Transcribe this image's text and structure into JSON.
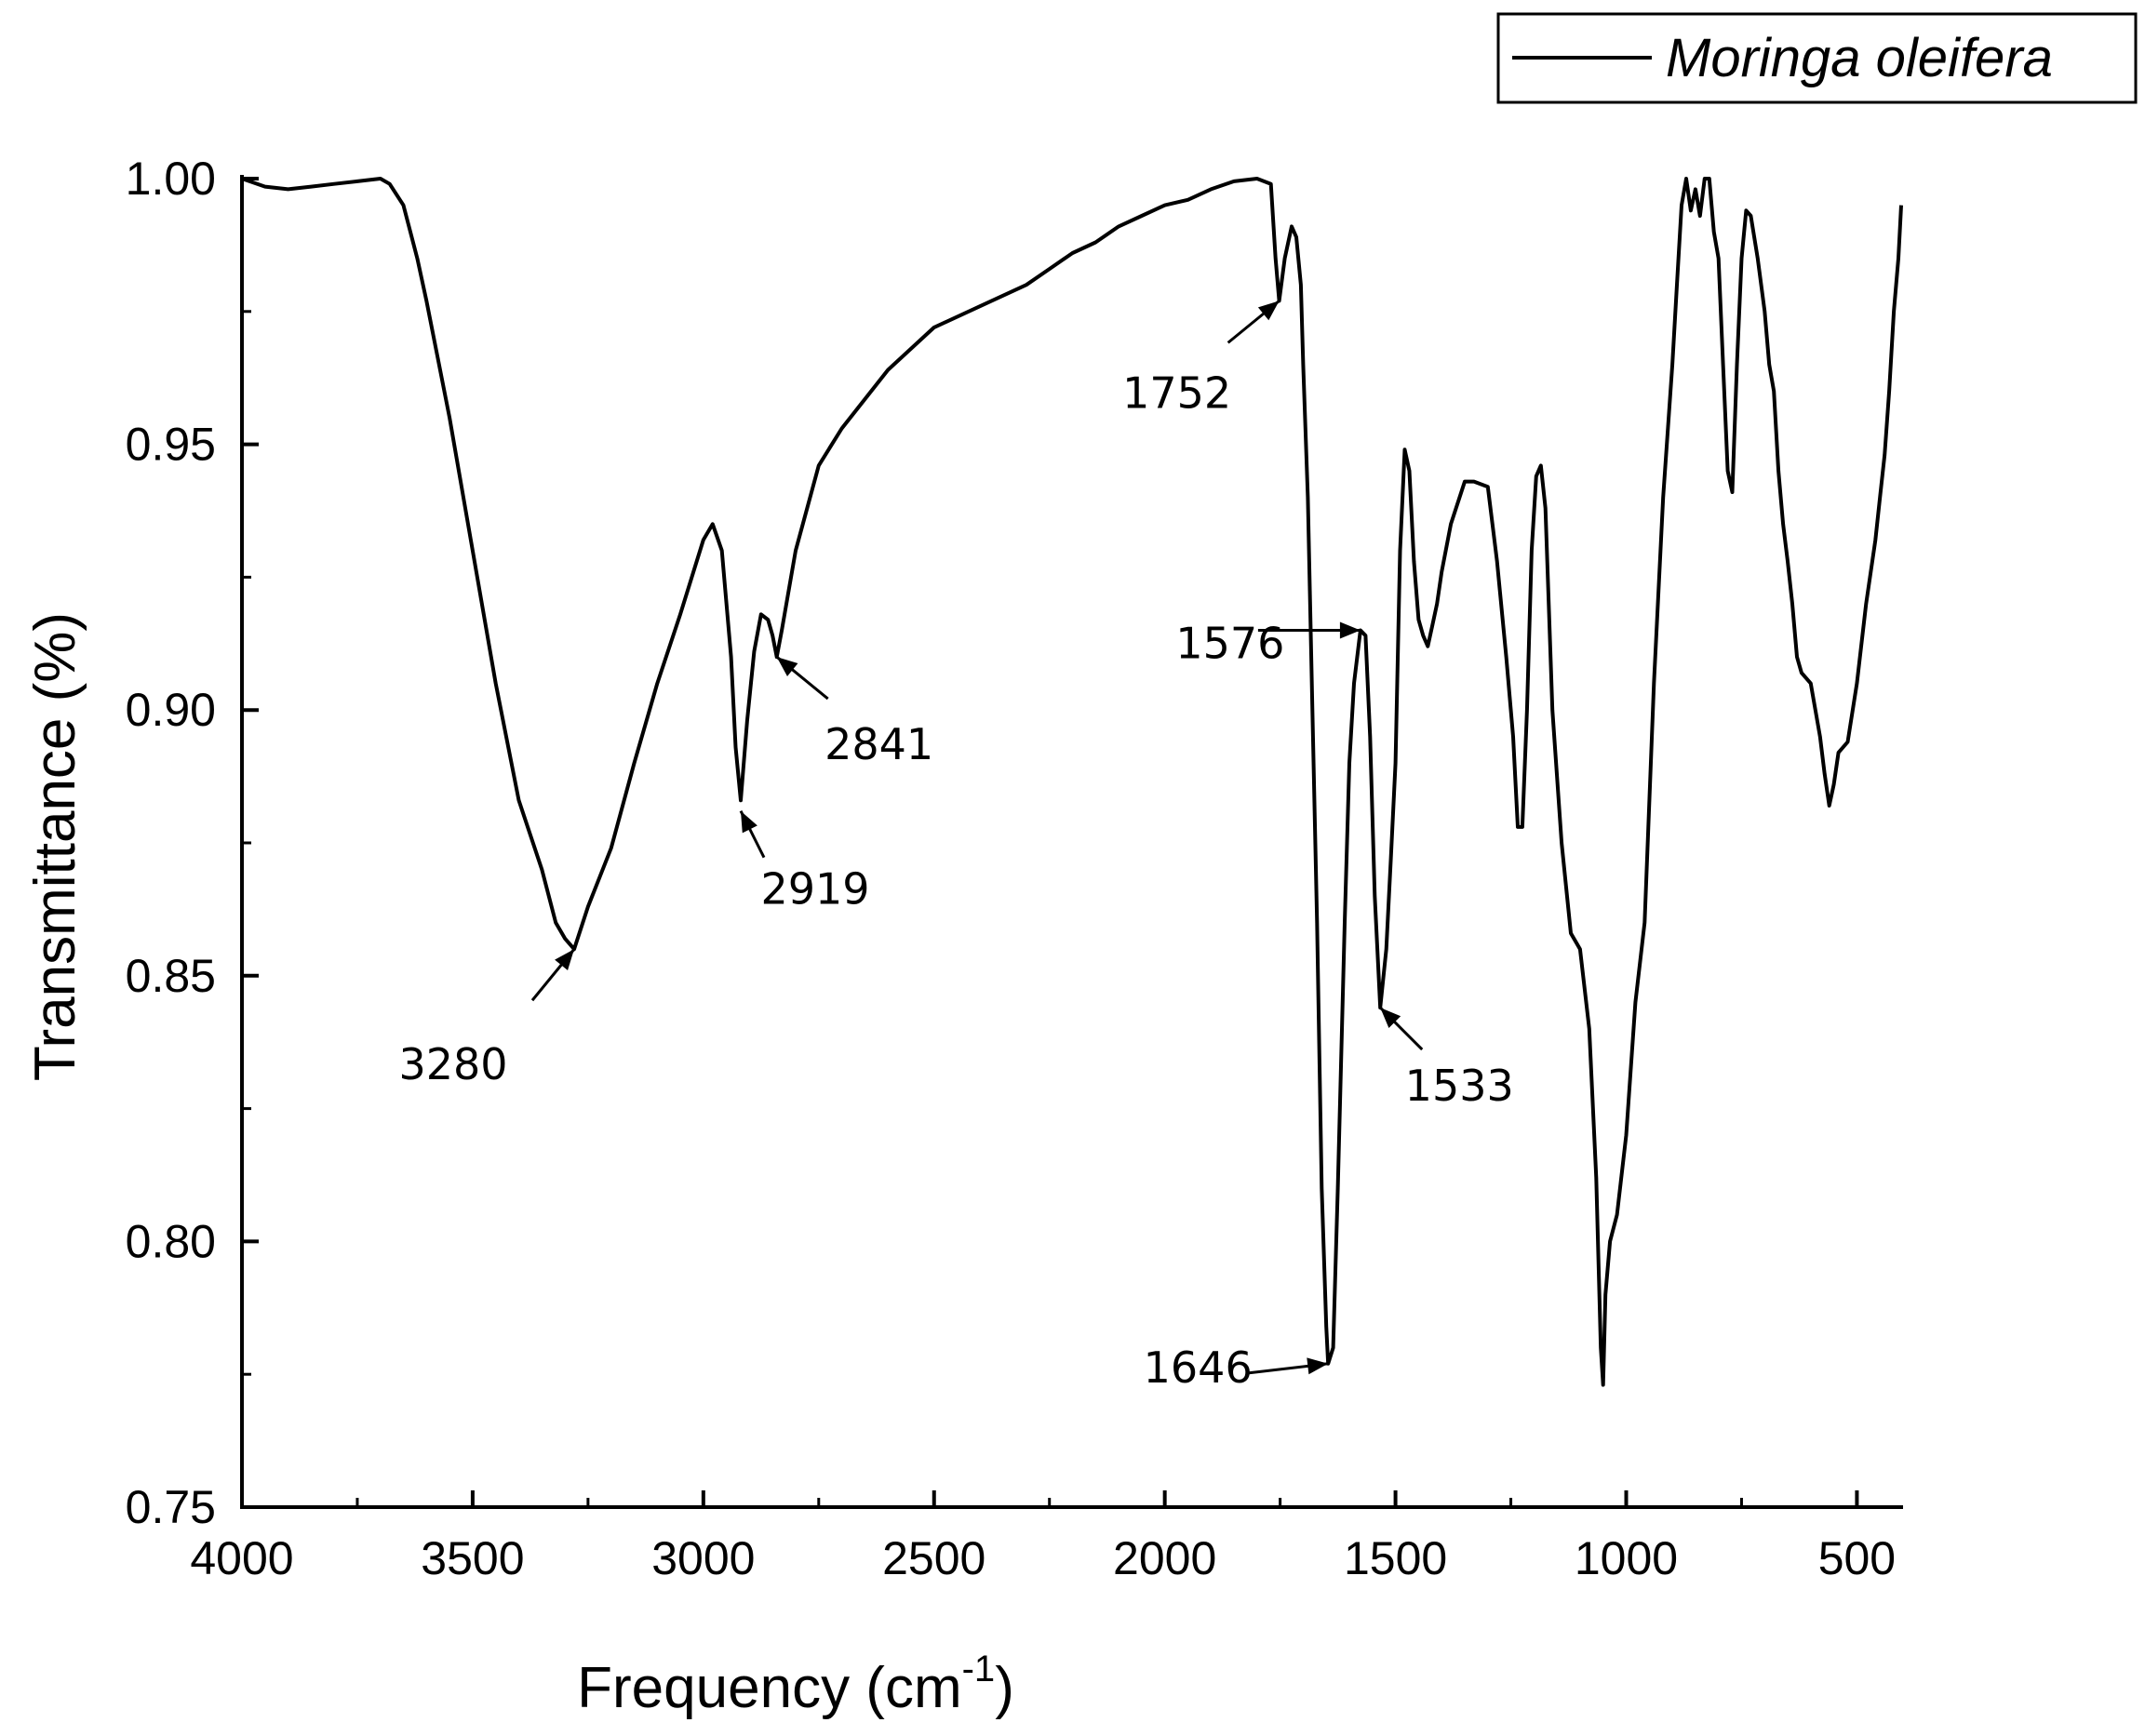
{
  "chart_data": {
    "type": "line",
    "title": "",
    "xlabel": "Frequency (cm",
    "xlabel_sup": "-1",
    "xlabel_close": ")",
    "ylabel": "Transmittance (%)",
    "xlim": [
      4000,
      400
    ],
    "ylim": [
      0.75,
      1.0
    ],
    "x_ticks": [
      4000,
      3500,
      3000,
      2500,
      2000,
      1500,
      1000,
      500
    ],
    "x_tick_labels": [
      "4000",
      "3500",
      "3000",
      "2500",
      "2000",
      "1500",
      "1000",
      "500"
    ],
    "y_ticks": [
      0.75,
      0.8,
      0.85,
      0.9,
      0.95,
      1.0
    ],
    "y_tick_labels": [
      "0.75",
      "0.80",
      "0.85",
      "0.90",
      "0.95",
      "1.00"
    ],
    "legend": {
      "position": "top-right",
      "entries": [
        "Moringa oleifera"
      ]
    },
    "series": [
      {
        "name": "Moringa oleifera",
        "x": [
          4000,
          3950,
          3900,
          3850,
          3800,
          3750,
          3700,
          3680,
          3650,
          3620,
          3600,
          3550,
          3500,
          3450,
          3400,
          3350,
          3320,
          3300,
          3280,
          3250,
          3200,
          3150,
          3100,
          3050,
          3000,
          2980,
          2960,
          2940,
          2930,
          2919,
          2905,
          2890,
          2875,
          2860,
          2850,
          2841,
          2830,
          2800,
          2750,
          2700,
          2600,
          2500,
          2400,
          2300,
          2250,
          2200,
          2150,
          2100,
          2050,
          2000,
          1950,
          1900,
          1850,
          1800,
          1770,
          1760,
          1752,
          1740,
          1725,
          1715,
          1705,
          1700,
          1690,
          1680,
          1670,
          1660,
          1650,
          1646,
          1635,
          1625,
          1610,
          1600,
          1590,
          1576,
          1565,
          1555,
          1545,
          1533,
          1520,
          1510,
          1500,
          1490,
          1480,
          1470,
          1460,
          1450,
          1440,
          1430,
          1420,
          1410,
          1400,
          1380,
          1350,
          1330,
          1300,
          1280,
          1260,
          1245,
          1235,
          1225,
          1215,
          1205,
          1195,
          1185,
          1175,
          1160,
          1140,
          1120,
          1100,
          1080,
          1065,
          1055,
          1050,
          1045,
          1035,
          1020,
          1000,
          980,
          960,
          940,
          920,
          900,
          890,
          880,
          870,
          860,
          850,
          840,
          830,
          820,
          810,
          800,
          790,
          780,
          770,
          760,
          750,
          740,
          730,
          715,
          700,
          690,
          680,
          670,
          660,
          650,
          640,
          630,
          620,
          600,
          590,
          580,
          570,
          560,
          550,
          540,
          520,
          500,
          480,
          460,
          450,
          440,
          430,
          420,
          410,
          404
        ],
        "y": [
          1.0,
          0.9985,
          0.998,
          0.9985,
          0.999,
          0.9995,
          1.0,
          0.999,
          0.995,
          0.985,
          0.977,
          0.955,
          0.93,
          0.905,
          0.883,
          0.87,
          0.86,
          0.857,
          0.855,
          0.863,
          0.874,
          0.89,
          0.905,
          0.918,
          0.932,
          0.935,
          0.93,
          0.91,
          0.893,
          0.883,
          0.898,
          0.911,
          0.918,
          0.917,
          0.914,
          0.91,
          0.915,
          0.93,
          0.946,
          0.953,
          0.964,
          0.972,
          0.976,
          0.98,
          0.983,
          0.986,
          0.988,
          0.991,
          0.993,
          0.995,
          0.996,
          0.998,
          0.9995,
          1.0,
          0.999,
          0.985,
          0.977,
          0.985,
          0.991,
          0.989,
          0.98,
          0.965,
          0.94,
          0.9,
          0.86,
          0.81,
          0.784,
          0.777,
          0.78,
          0.81,
          0.86,
          0.89,
          0.905,
          0.915,
          0.914,
          0.895,
          0.865,
          0.844,
          0.855,
          0.872,
          0.89,
          0.93,
          0.949,
          0.945,
          0.928,
          0.917,
          0.914,
          0.912,
          0.916,
          0.92,
          0.926,
          0.935,
          0.943,
          0.943,
          0.942,
          0.928,
          0.91,
          0.895,
          0.878,
          0.878,
          0.9,
          0.93,
          0.944,
          0.946,
          0.938,
          0.9,
          0.875,
          0.858,
          0.855,
          0.84,
          0.812,
          0.78,
          0.773,
          0.79,
          0.8,
          0.805,
          0.82,
          0.845,
          0.86,
          0.905,
          0.94,
          0.965,
          0.98,
          0.995,
          1.0,
          0.994,
          0.998,
          0.993,
          1.0,
          1.0,
          0.99,
          0.985,
          0.965,
          0.945,
          0.941,
          0.965,
          0.985,
          0.994,
          0.993,
          0.985,
          0.975,
          0.965,
          0.96,
          0.945,
          0.935,
          0.928,
          0.92,
          0.91,
          0.907,
          0.905,
          0.9,
          0.895,
          0.888,
          0.882,
          0.886,
          0.892,
          0.894,
          0.905,
          0.92,
          0.932,
          0.94,
          0.948,
          0.96,
          0.975,
          0.985,
          0.995
        ]
      }
    ],
    "annotations": [
      {
        "label": "3280",
        "x": 3280,
        "y": 0.855
      },
      {
        "label": "2919",
        "x": 2919,
        "y": 0.881
      },
      {
        "label": "2841",
        "x": 2841,
        "y": 0.91
      },
      {
        "label": "1752",
        "x": 1752,
        "y": 0.977
      },
      {
        "label": "1576",
        "x": 1576,
        "y": 0.915
      },
      {
        "label": "1533",
        "x": 1533,
        "y": 0.844
      },
      {
        "label": "1646",
        "x": 1646,
        "y": 0.777
      }
    ],
    "colors": {
      "line": "#000000",
      "axis": "#000000",
      "background": "#ffffff"
    }
  }
}
